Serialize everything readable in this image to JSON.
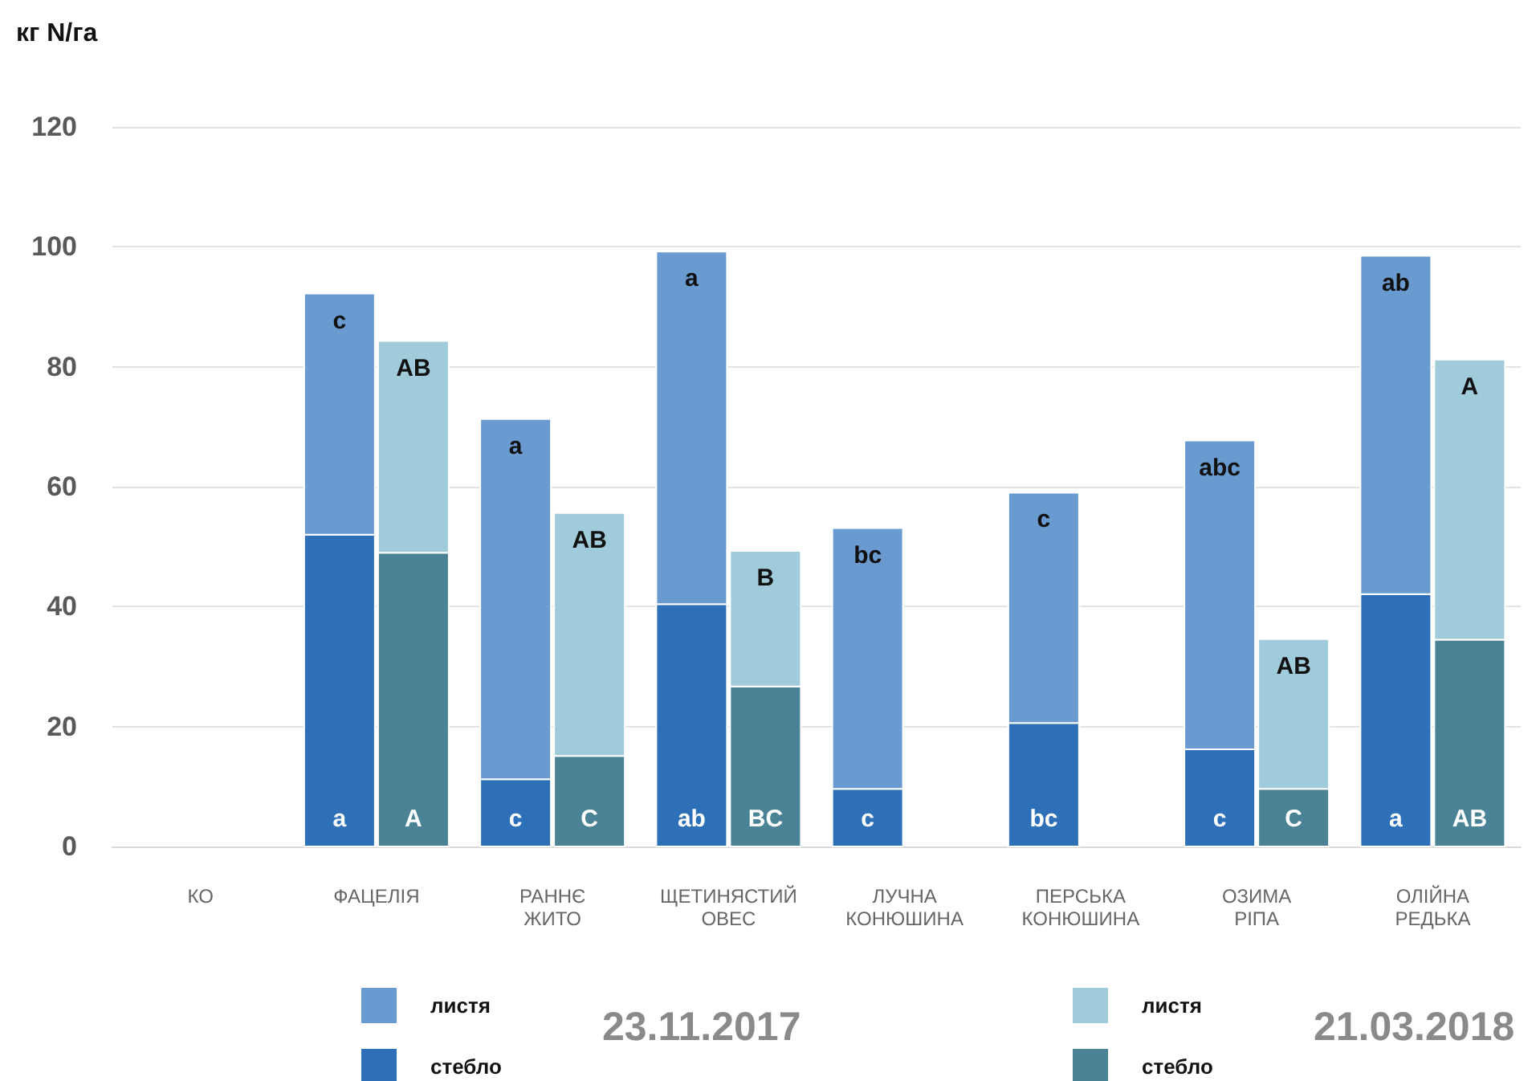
{
  "chart_data": [
    {
      "type": "bar",
      "ylabel": "кг N/га",
      "legend_title": "23.11.2017",
      "categories": [
        "КО",
        "ФАЦЕЛІЯ",
        "РАННЄ\nЖИТО",
        "ЩЕТИНЯСТИЙ\nОВЕС",
        "ЛУЧНА\nКОНЮШИНА",
        "ПЕРСЬКА\nКОНЮШИНА",
        "ОЗИМА\nРІПА",
        "ОЛІЙНА\nРЕДЬКА"
      ],
      "stacked": true,
      "series": [
        {
          "name": "стебло",
          "color": "#2e70b8",
          "values": [
            null,
            52,
            11.2,
            40.4,
            9.6,
            20.6,
            16.2,
            42.1
          ],
          "value_labels": [
            null,
            "a",
            "c",
            "ab",
            "c",
            "bc",
            "c",
            "a"
          ]
        },
        {
          "name": "листя",
          "color": "#6a9bd0",
          "values": [
            null,
            40.2,
            60.1,
            58.8,
            43.5,
            38.4,
            51.5,
            56.4
          ],
          "value_labels": [
            null,
            "c",
            "a",
            "a",
            "bc",
            "c",
            "abc",
            "ab"
          ]
        }
      ],
      "ylim": [
        0,
        120
      ],
      "yticks": [
        0,
        20,
        40,
        60,
        80,
        100,
        120
      ],
      "grid": "y",
      "legend": "bottom"
    },
    {
      "type": "bar",
      "legend_title": "21.03.2018",
      "categories": [
        null,
        null,
        null,
        null,
        null,
        null,
        null,
        null
      ],
      "stacked": true,
      "series": [
        {
          "name": "стебло",
          "color": "#4a8296",
          "values": [
            null,
            49,
            15.1,
            26.7,
            null,
            null,
            9.6,
            34.5
          ],
          "value_labels": [
            null,
            "A",
            "C",
            "BC",
            null,
            null,
            "C",
            "AB"
          ]
        },
        {
          "name": "листя",
          "color": "#a0cbdb",
          "values": [
            null,
            35.3,
            40.5,
            22.6,
            null,
            null,
            25,
            46.7
          ],
          "value_labels": [
            null,
            "AB",
            "AB",
            "B",
            null,
            null,
            "AB",
            "A"
          ]
        }
      ],
      "ylim": [
        0,
        120
      ],
      "yticks": [
        0,
        20,
        40,
        60,
        80,
        100,
        120
      ],
      "tick_labels": false,
      "legend": "bottom"
    }
  ]
}
